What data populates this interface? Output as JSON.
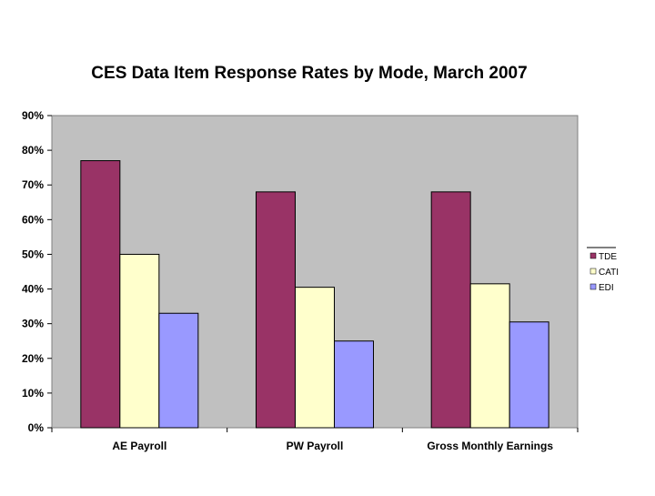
{
  "chart_data": {
    "type": "bar",
    "title": "CES Data Item Response Rates by Mode, March 2007",
    "xlabel": "",
    "ylabel": "",
    "categories": [
      "AE Payroll",
      "PW Payroll",
      "Gross Monthly Earnings"
    ],
    "series": [
      {
        "name": "TDE",
        "values": [
          77,
          68,
          68
        ]
      },
      {
        "name": "CATI",
        "values": [
          50,
          40.5,
          41.5
        ]
      },
      {
        "name": "EDI",
        "values": [
          33,
          25,
          30.5
        ]
      }
    ],
    "ylim": [
      0,
      90
    ],
    "yticks": [
      0,
      10,
      20,
      30,
      40,
      50,
      60,
      70,
      80,
      90
    ],
    "ytick_labels": [
      "0%",
      "10%",
      "20%",
      "30%",
      "40%",
      "50%",
      "60%",
      "70%",
      "80%",
      "90%"
    ],
    "grid": false,
    "legend_position": "right",
    "colors": {
      "TDE": "#993366",
      "CATI": "#ffffcc",
      "EDI": "#9999ff",
      "plot_background": "#c0c0c0",
      "bar_outline": "#000000"
    }
  }
}
